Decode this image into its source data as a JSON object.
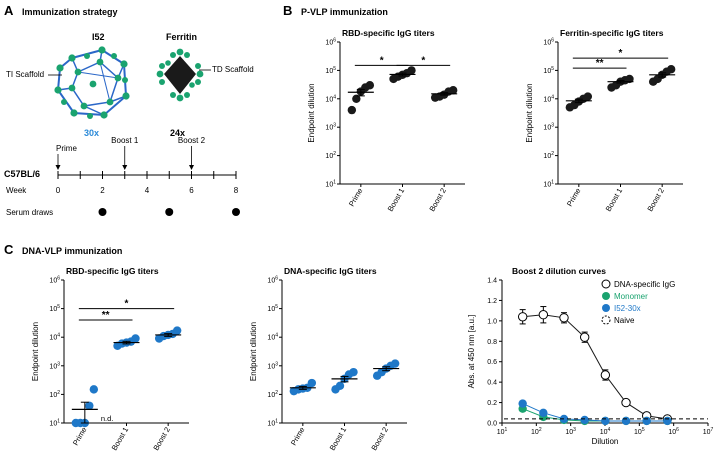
{
  "panels": {
    "A": {
      "letter": "A",
      "title": "Immunization strategy",
      "i52_name": "I52",
      "ferritin_name": "Ferritin",
      "ti_scaffold": "TI Scaffold",
      "td_scaffold": "TD Scaffold",
      "i52_valency": "30x",
      "ferritin_valency": "24x",
      "strain": "C57BL/6",
      "week_label": "Week",
      "serum_label": "Serum draws",
      "events": [
        {
          "label": "Prime",
          "week": 0
        },
        {
          "label": "Boost 1",
          "week": 3
        },
        {
          "label": "Boost 2",
          "week": 6
        }
      ],
      "week_ticks": [
        "0",
        "2",
        "4",
        "6",
        "8"
      ],
      "serum_weeks": [
        2,
        5,
        8
      ]
    },
    "B": {
      "letter": "B",
      "title": "P-VLP immunization"
    },
    "C": {
      "letter": "C",
      "title": "DNA-VLP immunization"
    }
  },
  "colors": {
    "black": "#1a1a1a",
    "blue": "#1f78c8",
    "green": "#1aa36f",
    "i52_text": "#1f78c8"
  },
  "chart_data": [
    {
      "type": "scatter",
      "id": "b1",
      "title": "RBD-specific IgG titers",
      "ylabel": "Endpoint dilution",
      "yscale": "log",
      "ylim_exp": [
        1,
        6
      ],
      "ytick_labels": [
        "10",
        "10",
        "10",
        "10",
        "10",
        "10"
      ],
      "ytick_exps": [
        "1",
        "2",
        "3",
        "4",
        "5",
        "6"
      ],
      "categories": [
        "Prime",
        "Boost 1",
        "Boost 2"
      ],
      "color": "#1a1a1a",
      "points": [
        [
          10000,
          18000,
          25000,
          30000,
          4000
        ],
        [
          50000,
          60000,
          70000,
          80000,
          100000
        ],
        [
          11000,
          12000,
          14000,
          18000,
          20000
        ]
      ],
      "means": [
        17000,
        72000,
        15000
      ],
      "sig": [
        {
          "from": 0,
          "to": 1,
          "label": "*",
          "y": 150000
        },
        {
          "from": 1,
          "to": 2,
          "label": "*",
          "y": 150000
        }
      ]
    },
    {
      "type": "scatter",
      "id": "b2",
      "title": "Ferritin-specific IgG titers",
      "ylabel": "Endpoint dilution",
      "yscale": "log",
      "ylim_exp": [
        1,
        6
      ],
      "ytick_labels": [
        "10",
        "10",
        "10",
        "10",
        "10",
        "10"
      ],
      "ytick_exps": [
        "1",
        "2",
        "3",
        "4",
        "5",
        "6"
      ],
      "categories": [
        "Prime",
        "Boost 1",
        "Boost 2"
      ],
      "color": "#1a1a1a",
      "points": [
        [
          5000,
          6000,
          8000,
          10000,
          12000
        ],
        [
          25000,
          30000,
          40000,
          45000,
          50000
        ],
        [
          40000,
          50000,
          70000,
          90000,
          110000
        ]
      ],
      "means": [
        8500,
        40000,
        70000
      ],
      "sig": [
        {
          "from": 0,
          "to": 1,
          "label": "**",
          "y": 120000
        },
        {
          "from": 0,
          "to": 2,
          "label": "*",
          "y": 270000
        }
      ]
    },
    {
      "type": "scatter",
      "id": "c1",
      "title": "RBD-specific IgG titers",
      "ylabel": "Endpoint dilution",
      "yscale": "log",
      "ylim_exp": [
        1,
        6
      ],
      "ytick_labels": [
        "10",
        "10",
        "10",
        "10",
        "10",
        "10"
      ],
      "ytick_exps": [
        "1",
        "2",
        "3",
        "4",
        "5",
        "6"
      ],
      "categories": [
        "Prime",
        "Boost 1",
        "Boost 2"
      ],
      "color": "#1f78c8",
      "points": [
        [
          10,
          10,
          10,
          40,
          150
        ],
        [
          5000,
          6000,
          6500,
          7000,
          9000
        ],
        [
          9000,
          11000,
          12000,
          13000,
          17000
        ]
      ],
      "means": [
        30,
        6500,
        12000
      ],
      "annotation": "n.d.",
      "sig": [
        {
          "from": 0,
          "to": 1,
          "label": "**",
          "y": 40000
        },
        {
          "from": 0,
          "to": 2,
          "label": "*",
          "y": 100000
        }
      ]
    },
    {
      "type": "scatter",
      "id": "c2",
      "title": "DNA-specific IgG titers",
      "ylabel": "Endpoint dilution",
      "yscale": "log",
      "ylim_exp": [
        1,
        6
      ],
      "ytick_labels": [
        "10",
        "10",
        "10",
        "10",
        "10",
        "10"
      ],
      "ytick_exps": [
        "1",
        "2",
        "3",
        "4",
        "5",
        "6"
      ],
      "categories": [
        "Prime",
        "Boost 1",
        "Boost 2"
      ],
      "color": "#1f78c8",
      "points": [
        [
          130,
          150,
          160,
          170,
          250
        ],
        [
          150,
          200,
          350,
          500,
          600
        ],
        [
          450,
          600,
          800,
          1000,
          1200
        ]
      ],
      "means": [
        170,
        350,
        800
      ],
      "sig": []
    },
    {
      "type": "line",
      "id": "c3",
      "title": "Boost 2 dilution curves",
      "xlabel": "Dilution",
      "ylabel": "Abs. at 450 nm [a.u.]",
      "xscale": "log",
      "xlim_exp": [
        1,
        7
      ],
      "xtick_labels": [
        "10",
        "10",
        "10",
        "10",
        "10",
        "10",
        "10"
      ],
      "xtick_exps": [
        "1",
        "2",
        "3",
        "4",
        "5",
        "6",
        "7"
      ],
      "ylim": [
        0,
        1.4
      ],
      "yticks": [
        "0.0",
        "0.2",
        "0.4",
        "0.6",
        "0.8",
        "1.0",
        "1.2",
        "1.4"
      ],
      "x": [
        40,
        160,
        640,
        2560,
        10240,
        40960,
        163840,
        655360
      ],
      "series": [
        {
          "name": "DNA-specific IgG",
          "style": "open",
          "color": "#1a1a1a",
          "values": [
            1.04,
            1.06,
            1.03,
            0.84,
            0.47,
            0.2,
            0.07,
            0.04
          ],
          "errors": [
            0.07,
            0.08,
            0.05,
            0.05,
            0.05,
            0.02,
            0.01,
            0.01
          ]
        },
        {
          "name": "Monomer",
          "style": "filled",
          "color": "#1aa36f",
          "values": [
            0.14,
            0.06,
            0.03,
            0.02,
            0.02,
            0.02,
            0.02,
            0.02
          ]
        },
        {
          "name": "I52-30x",
          "style": "filled",
          "color": "#1f78c8",
          "values": [
            0.19,
            0.1,
            0.04,
            0.03,
            0.02,
            0.02,
            0.02,
            0.02
          ]
        },
        {
          "name": "Naive",
          "style": "dashed",
          "color": "#1a1a1a",
          "values": [
            0.04,
            0.04,
            0.04,
            0.04,
            0.04,
            0.04,
            0.04,
            0.04
          ]
        }
      ]
    }
  ]
}
